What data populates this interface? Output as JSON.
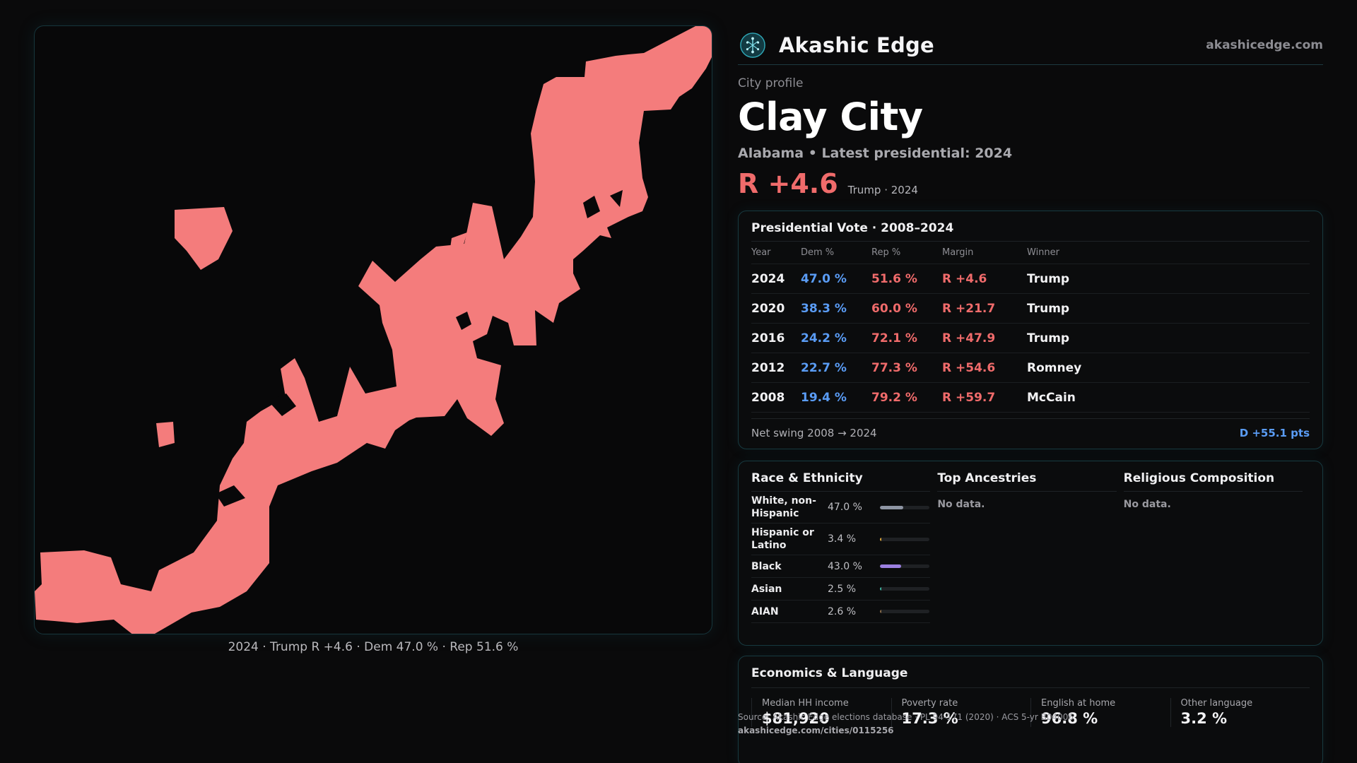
{
  "brand": {
    "name": "Akashic Edge",
    "site": "akashicedge.com",
    "logo_icon": "tree-of-life-icon"
  },
  "profile": {
    "eyebrow": "City profile",
    "city": "Clay City",
    "subtitle": "Alabama • Latest presidential: 2024",
    "headline_margin": "R +4.6",
    "headline_note": "Trump · 2024",
    "rep_color": "#f06b6b",
    "dem_color": "#5a9cf5"
  },
  "map": {
    "fill_color": "#f47c7c",
    "caption": "2024 · Trump R +4.6 · Dem 47.0 % · Rep 51.6 %"
  },
  "vote_table": {
    "title": "Presidential Vote · 2008–2024",
    "headers": [
      "Year",
      "Dem %",
      "Rep %",
      "Margin",
      "Winner"
    ],
    "rows": [
      {
        "year": "2024",
        "dem": "47.0 %",
        "rep": "51.6 %",
        "margin": "R +4.6",
        "winner": "Trump"
      },
      {
        "year": "2020",
        "dem": "38.3 %",
        "rep": "60.0 %",
        "margin": "R +21.7",
        "winner": "Trump"
      },
      {
        "year": "2016",
        "dem": "24.2 %",
        "rep": "72.1 %",
        "margin": "R +47.9",
        "winner": "Trump"
      },
      {
        "year": "2012",
        "dem": "22.7 %",
        "rep": "77.3 %",
        "margin": "R +54.6",
        "winner": "Romney"
      },
      {
        "year": "2008",
        "dem": "19.4 %",
        "rep": "79.2 %",
        "margin": "R +59.7",
        "winner": "McCain"
      }
    ],
    "swing_label": "Net swing 2008 → 2024",
    "swing_value": "D +55.1 pts"
  },
  "race": {
    "title": "Race & Ethnicity",
    "rows": [
      {
        "label": "White, non-Hispanic",
        "value": "47.0 %",
        "fraction": 0.47,
        "color": "#8e95a3"
      },
      {
        "label": "Hispanic or Latino",
        "value": "3.4 %",
        "fraction": 0.034,
        "color": "#e0a83a"
      },
      {
        "label": "Black",
        "value": "43.0 %",
        "fraction": 0.43,
        "color": "#9b7fe0"
      },
      {
        "label": "Asian",
        "value": "2.5 %",
        "fraction": 0.025,
        "color": "#3fb6a0"
      },
      {
        "label": "AIAN",
        "value": "2.6 %",
        "fraction": 0.026,
        "color": "#8a6d4a"
      }
    ]
  },
  "ancestries": {
    "title": "Top Ancestries",
    "empty": "No data."
  },
  "religion": {
    "title": "Religious Composition",
    "empty": "No data."
  },
  "economics": {
    "title": "Economics & Language",
    "cells": [
      {
        "label": "Median HH income",
        "value": "$81,920"
      },
      {
        "label": "Poverty rate",
        "value": "17.3 %"
      },
      {
        "label": "English at home",
        "value": "96.8 %"
      },
      {
        "label": "Other language",
        "value": "3.2 %"
      }
    ]
  },
  "source": {
    "line": "Source: Akashic Edge elections database · PL 94-171 (2020) · ACS 5-yr B04006",
    "url": "akashicedge.com/cities/0115256"
  }
}
